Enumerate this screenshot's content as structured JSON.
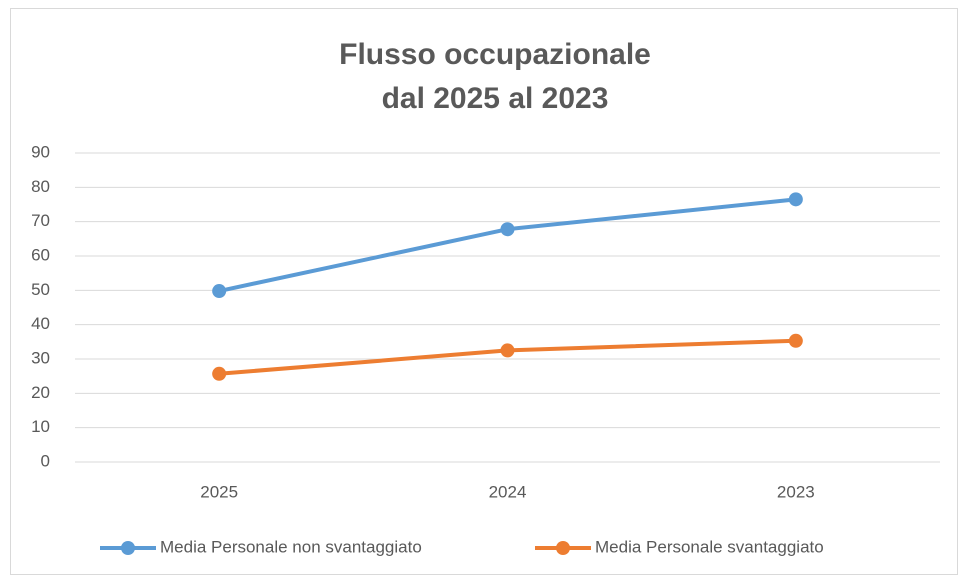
{
  "chart_data": {
    "type": "line",
    "title": [
      "Flusso occupazionale",
      "dal 2025 al 2023"
    ],
    "categories": [
      "2025",
      "2024",
      "2023"
    ],
    "series": [
      {
        "name": "Media Personale non svantaggiato",
        "color": "#5b9bd5",
        "values": [
          49.8,
          67.8,
          76.5
        ]
      },
      {
        "name": "Media Personale svantaggiato",
        "color": "#ed7d31",
        "values": [
          25.7,
          32.5,
          35.3
        ]
      }
    ],
    "ylim": [
      0,
      90
    ],
    "yticks": [
      0,
      10,
      20,
      30,
      40,
      50,
      60,
      70,
      80,
      90
    ],
    "grid": true,
    "legend": "bottom"
  }
}
